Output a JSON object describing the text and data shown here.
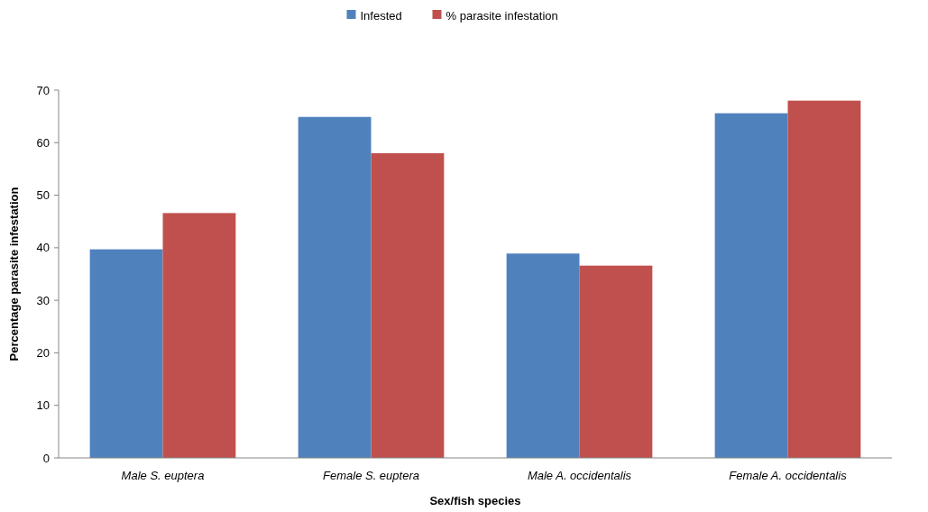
{
  "chart_data": {
    "type": "bar",
    "xlabel": "Sex/fish species",
    "ylabel": "Percentage parasite infestation",
    "categories": [
      "Male S. euptera",
      "Female S. euptera",
      "Male A. occidentalis",
      "Female A. occidentalis"
    ],
    "series": [
      {
        "name": "Infested",
        "color": "#4f81bd",
        "values": [
          39.7,
          64.9,
          38.9,
          65.6
        ]
      },
      {
        "name": "% parasite infestation",
        "color": "#c0504d",
        "values": [
          46.6,
          58,
          36.6,
          68
        ]
      }
    ],
    "ylim": [
      0,
      70
    ],
    "yticks": [
      0,
      10,
      20,
      30,
      40,
      50,
      60,
      70
    ],
    "grid": false,
    "legend": "top"
  }
}
